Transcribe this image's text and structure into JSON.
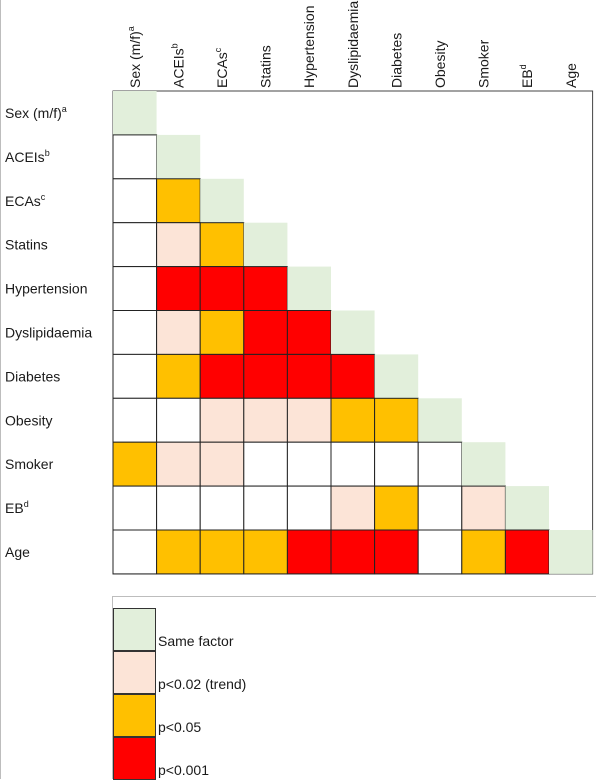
{
  "chart_data": {
    "type": "heatmap",
    "title": "",
    "row_labels": [
      {
        "text": "Sex (m/f)",
        "sup": "a"
      },
      {
        "text": "ACEIs",
        "sup": "b"
      },
      {
        "text": "ECAs",
        "sup": "c"
      },
      {
        "text": "Statins",
        "sup": ""
      },
      {
        "text": "Hypertension",
        "sup": ""
      },
      {
        "text": "Dyslipidaemia",
        "sup": ""
      },
      {
        "text": "Diabetes",
        "sup": ""
      },
      {
        "text": "Obesity",
        "sup": ""
      },
      {
        "text": "Smoker",
        "sup": ""
      },
      {
        "text": "EB",
        "sup": "d"
      },
      {
        "text": "Age",
        "sup": ""
      }
    ],
    "column_labels": [
      {
        "text": "Sex (m/f)",
        "sup": "a"
      },
      {
        "text": "ACEIs",
        "sup": "b"
      },
      {
        "text": "ECAs",
        "sup": "c"
      },
      {
        "text": "Statins",
        "sup": ""
      },
      {
        "text": "Hypertension",
        "sup": ""
      },
      {
        "text": "Dyslipidaemia",
        "sup": ""
      },
      {
        "text": "Diabetes",
        "sup": ""
      },
      {
        "text": "Obesity",
        "sup": ""
      },
      {
        "text": "Smoker",
        "sup": ""
      },
      {
        "text": "EB",
        "sup": "d"
      },
      {
        "text": "Age",
        "sup": ""
      }
    ],
    "categories": {
      "same": {
        "label": "Same factor",
        "color": "#e2efdb"
      },
      "trend": {
        "label": "p<0.02 (trend)",
        "color": "#fce4d7"
      },
      "p05": {
        "label": "p<0.05",
        "color": "#ffc000"
      },
      "p001": {
        "label": "p<0.001",
        "color": "#ff0000"
      },
      "none": {
        "label": "",
        "color": "#ffffff"
      }
    },
    "legend_order": [
      "same",
      "trend",
      "p05",
      "p001"
    ],
    "lower_triangle": [
      [
        "same"
      ],
      [
        "none",
        "same"
      ],
      [
        "none",
        "p05",
        "same"
      ],
      [
        "none",
        "trend",
        "p05",
        "same"
      ],
      [
        "none",
        "p001",
        "p001",
        "p001",
        "same"
      ],
      [
        "none",
        "trend",
        "p05",
        "p001",
        "p001",
        "same"
      ],
      [
        "none",
        "p05",
        "p001",
        "p001",
        "p001",
        "p001",
        "same"
      ],
      [
        "none",
        "none",
        "trend",
        "trend",
        "trend",
        "p05",
        "p05",
        "same"
      ],
      [
        "p05",
        "trend",
        "trend",
        "none",
        "none",
        "none",
        "none",
        "none",
        "same"
      ],
      [
        "none",
        "none",
        "none",
        "none",
        "none",
        "trend",
        "p05",
        "none",
        "trend",
        "same"
      ],
      [
        "none",
        "p05",
        "p05",
        "p05",
        "p001",
        "p001",
        "p001",
        "none",
        "p05",
        "p001",
        "same"
      ]
    ]
  }
}
